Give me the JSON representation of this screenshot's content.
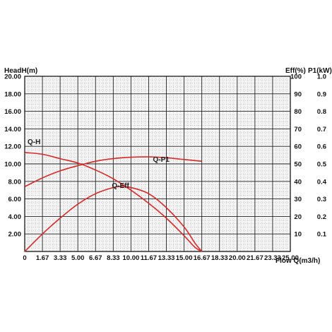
{
  "chart_data": {
    "type": "line",
    "left_axis_title": "HeadH(m)",
    "right_axis_titles": [
      "Eff(%)",
      "P1(kW)"
    ],
    "x_axis_title": "Flow Q(m3/h)",
    "x_ticks": [
      "0",
      "1.67",
      "3.33",
      "5.00",
      "6.67",
      "8.33",
      "10.00",
      "11.67",
      "13.33",
      "15.00",
      "16.67",
      "18.33",
      "20.00",
      "21.67",
      "23.33",
      "25.00"
    ],
    "y_ticks_left": [
      "2.00",
      "4.00",
      "6.00",
      "8.00",
      "10.00",
      "12.00",
      "14.00",
      "16.00",
      "18.00",
      "20.00"
    ],
    "y_ticks_right_eff": [
      "10",
      "20",
      "30",
      "40",
      "50",
      "60",
      "70",
      "80",
      "90",
      "100"
    ],
    "y_ticks_right_p1": [
      "0.1",
      "0.2",
      "0.3",
      "0.4",
      "0.5",
      "0.6",
      "0.7",
      "0.8",
      "0.9",
      "1.0"
    ],
    "xlim": [
      0,
      25
    ],
    "ylim_left": [
      0,
      20
    ],
    "ylim_right_eff": [
      0,
      100
    ],
    "grid": true,
    "series_color": "#d42a2a",
    "series": [
      {
        "name": "Q-H",
        "axis": "left",
        "x": [
          0,
          1.67,
          3.33,
          5.0,
          6.67,
          8.33,
          10.0,
          11.67,
          13.33,
          15.0,
          16.0,
          16.67
        ],
        "y": [
          11.3,
          11.1,
          10.6,
          10.1,
          9.3,
          8.3,
          7.0,
          5.5,
          3.8,
          1.8,
          0.5,
          0
        ]
      },
      {
        "name": "Q-P1",
        "axis": "right_eff",
        "x": [
          0,
          1.67,
          3.33,
          5.0,
          6.67,
          8.33,
          10.0,
          11.67,
          13.33,
          15.0,
          16.67
        ],
        "y": [
          37,
          42,
          46,
          49,
          51.5,
          53,
          53.8,
          54,
          53.5,
          52.5,
          51.5
        ]
      },
      {
        "name": "Q-Eff",
        "axis": "right_eff",
        "x": [
          0,
          1.67,
          3.33,
          5.0,
          6.67,
          8.33,
          9.0,
          10.0,
          11.67,
          13.33,
          15.0,
          16.0,
          16.67
        ],
        "y": [
          0,
          10,
          19,
          27,
          33,
          36.5,
          37,
          36.5,
          33,
          25,
          14,
          5,
          0
        ]
      }
    ],
    "curve_labels": [
      {
        "text": "Q-H",
        "series": "Q-H"
      },
      {
        "text": "Q-P1",
        "series": "Q-P1"
      },
      {
        "text": "Q-Eff",
        "series": "Q-Eff"
      }
    ]
  }
}
